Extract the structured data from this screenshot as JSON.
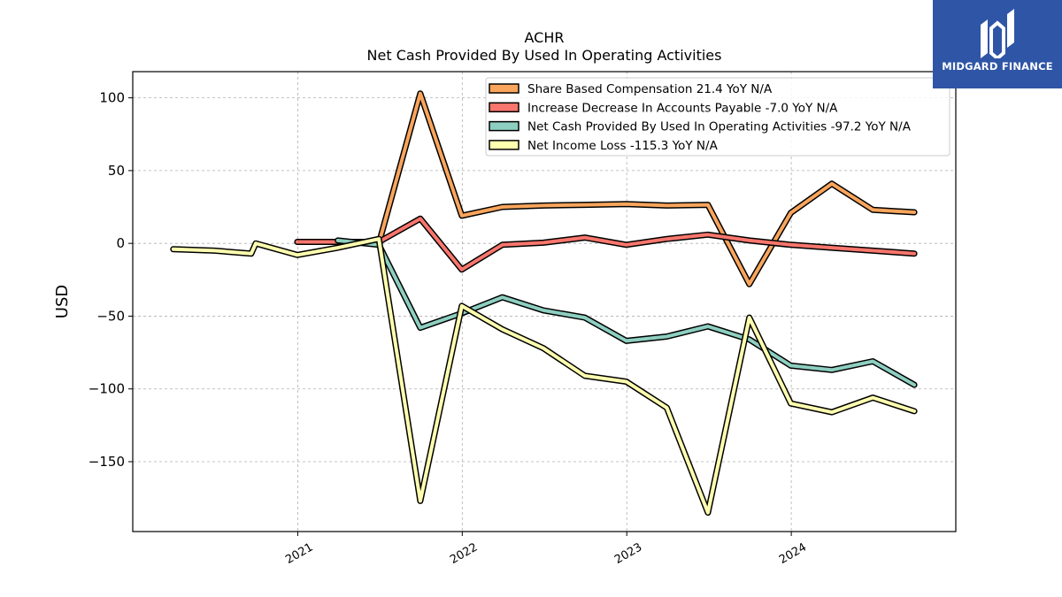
{
  "chart_data": {
    "type": "line",
    "title": "ACHR",
    "subtitle": "Net Cash Provided By Used In Operating Activities",
    "ylabel": "USD",
    "xlabel": "",
    "xlim": [
      "2020-01-01",
      "2024-12-31"
    ],
    "ylim": [
      -198,
      118
    ],
    "x_ticks": [
      "2021-01-01",
      "2022-01-01",
      "2023-01-01",
      "2024-01-01"
    ],
    "x_tick_labels": [
      "2021",
      "2022",
      "2023",
      "2024"
    ],
    "y_ticks": [
      100,
      50,
      0,
      -50,
      -100,
      -150
    ],
    "y_tick_labels": [
      "100",
      "50",
      "0",
      "−50",
      "−100",
      "−150"
    ],
    "grid": true,
    "legend_position": "top-right",
    "series": [
      {
        "name": "Share Based Compensation  21.4 YoY N/A",
        "color": "#f9a55c",
        "points": [
          [
            "2021-06-30",
            0
          ],
          [
            "2021-09-30",
            103
          ],
          [
            "2021-12-31",
            19
          ],
          [
            "2022-03-31",
            25
          ],
          [
            "2022-06-30",
            26
          ],
          [
            "2022-09-30",
            26.5
          ],
          [
            "2022-12-31",
            27
          ],
          [
            "2023-03-31",
            26
          ],
          [
            "2023-06-30",
            26.5
          ],
          [
            "2023-09-30",
            -28
          ],
          [
            "2023-12-31",
            21
          ],
          [
            "2024-03-31",
            41
          ],
          [
            "2024-06-30",
            23
          ],
          [
            "2024-09-30",
            21.4
          ]
        ]
      },
      {
        "name": "Increase Decrease In Accounts Payable  -7.0 YoY N/A",
        "color": "#f8766d",
        "points": [
          [
            "2020-12-31",
            1
          ],
          [
            "2021-03-31",
            1
          ],
          [
            "2021-06-30",
            1
          ],
          [
            "2021-09-30",
            17
          ],
          [
            "2021-12-31",
            -18
          ],
          [
            "2022-03-31",
            -1
          ],
          [
            "2022-06-30",
            0.5
          ],
          [
            "2022-09-30",
            4
          ],
          [
            "2022-12-31",
            -1
          ],
          [
            "2023-03-31",
            3
          ],
          [
            "2023-06-30",
            6
          ],
          [
            "2023-09-30",
            2
          ],
          [
            "2023-12-31",
            -1
          ],
          [
            "2024-03-31",
            -3
          ],
          [
            "2024-06-30",
            -5
          ],
          [
            "2024-09-30",
            -7.0
          ]
        ]
      },
      {
        "name": "Net Cash Provided By Used In Operating Activities  -97.2 YoY N/A",
        "color": "#8dcfc0",
        "points": [
          [
            "2021-03-31",
            2
          ],
          [
            "2021-06-30",
            -1
          ],
          [
            "2021-09-30",
            -58
          ],
          [
            "2021-12-31",
            -48
          ],
          [
            "2022-03-31",
            -37
          ],
          [
            "2022-06-30",
            -46
          ],
          [
            "2022-09-30",
            -51
          ],
          [
            "2022-12-31",
            -67
          ],
          [
            "2023-03-31",
            -64
          ],
          [
            "2023-06-30",
            -57
          ],
          [
            "2023-09-30",
            -66
          ],
          [
            "2023-12-31",
            -84
          ],
          [
            "2024-03-31",
            -87
          ],
          [
            "2024-06-30",
            -81
          ],
          [
            "2024-09-30",
            -97.2
          ]
        ]
      },
      {
        "name": "Net Income Loss  -115.3 YoY N/A",
        "color": "#ffffb0",
        "points": [
          [
            "2020-03-31",
            -4
          ],
          [
            "2020-06-30",
            -5
          ],
          [
            "2020-09-20",
            -7
          ],
          [
            "2020-09-30",
            0
          ],
          [
            "2020-12-31",
            -8
          ],
          [
            "2021-03-31",
            -3
          ],
          [
            "2021-06-30",
            3
          ],
          [
            "2021-09-30",
            -177
          ],
          [
            "2021-12-31",
            -43
          ],
          [
            "2022-03-31",
            -59
          ],
          [
            "2022-06-30",
            -72
          ],
          [
            "2022-09-30",
            -91
          ],
          [
            "2022-12-31",
            -95
          ],
          [
            "2023-03-31",
            -113
          ],
          [
            "2023-06-30",
            -185
          ],
          [
            "2023-09-30",
            -51
          ],
          [
            "2023-12-31",
            -110
          ],
          [
            "2024-03-31",
            -116
          ],
          [
            "2024-06-30",
            -106
          ],
          [
            "2024-09-30",
            -115.3
          ]
        ]
      }
    ]
  },
  "logo": {
    "text": "MIDGARD FINANCE",
    "icon": "midgard-logo-icon",
    "background": "#2f55a6"
  }
}
